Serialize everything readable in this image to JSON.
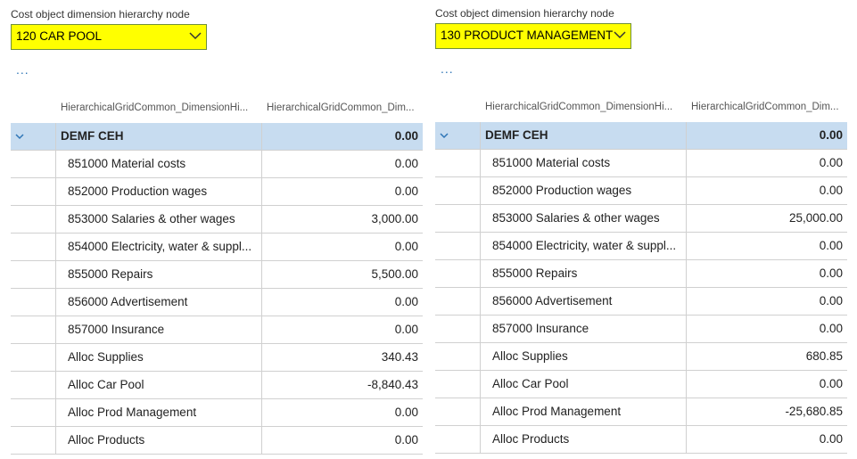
{
  "panels": [
    {
      "label": "Cost object dimension hierarchy node",
      "selection": "120 CAR POOL",
      "more": "...",
      "columns": [
        "HierarchicalGridCommon_DimensionHi...",
        "HierarchicalGridCommon_Dim..."
      ],
      "group": {
        "name": "DEMF CEH",
        "value": "0.00"
      },
      "rows": [
        [
          "851000 Material costs",
          "0.00"
        ],
        [
          "852000 Production wages",
          "0.00"
        ],
        [
          "853000 Salaries & other wages",
          "3,000.00"
        ],
        [
          "854000 Electricity, water & suppl...",
          "0.00"
        ],
        [
          "855000 Repairs",
          "5,500.00"
        ],
        [
          "856000 Advertisement",
          "0.00"
        ],
        [
          "857000 Insurance",
          "0.00"
        ],
        [
          "Alloc Supplies",
          "340.43"
        ],
        [
          "Alloc Car Pool",
          "-8,840.43"
        ],
        [
          "Alloc Prod Management",
          "0.00"
        ],
        [
          "Alloc Products",
          "0.00"
        ]
      ]
    },
    {
      "label": "Cost object dimension hierarchy node",
      "selection": "130 PRODUCT MANAGEMENT",
      "more": "...",
      "columns": [
        "HierarchicalGridCommon_DimensionHi...",
        "HierarchicalGridCommon_Dim..."
      ],
      "group": {
        "name": "DEMF CEH",
        "value": "0.00"
      },
      "rows": [
        [
          "851000 Material costs",
          "0.00"
        ],
        [
          "852000 Production wages",
          "0.00"
        ],
        [
          "853000 Salaries & other wages",
          "25,000.00"
        ],
        [
          "854000 Electricity, water & suppl...",
          "0.00"
        ],
        [
          "855000 Repairs",
          "0.00"
        ],
        [
          "856000 Advertisement",
          "0.00"
        ],
        [
          "857000 Insurance",
          "0.00"
        ],
        [
          "Alloc Supplies",
          "680.85"
        ],
        [
          "Alloc Car Pool",
          "0.00"
        ],
        [
          "Alloc Prod Management",
          "-25,680.85"
        ],
        [
          "Alloc Products",
          "0.00"
        ]
      ]
    }
  ]
}
